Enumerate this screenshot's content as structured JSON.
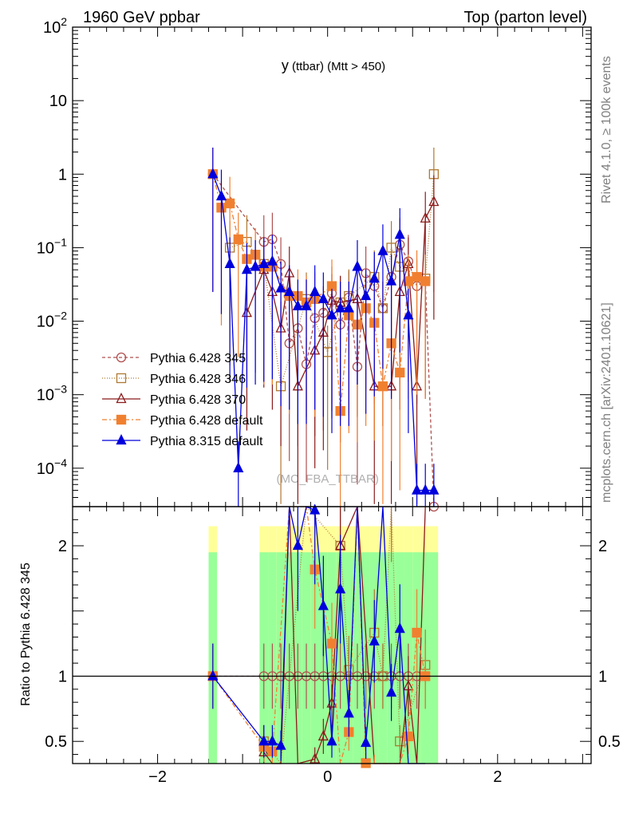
{
  "header": {
    "left": "1960 GeV ppbar",
    "right": "Top (parton level)"
  },
  "side_labels": {
    "rivet": "Rivet 4.1.0, ≥ 100k events",
    "mcplots": "mcplots.cern.ch [arXiv:2401.10621]"
  },
  "chart_data": {
    "type": "line",
    "title_main": "y",
    "title_sub": " (ttbar) (Mtt > 450)",
    "watermark": "(MC_FBA_TTBAR)",
    "xlim": [
      -3.0,
      3.1
    ],
    "ylim": [
      3e-05,
      100
    ],
    "yscale": "log",
    "x_ticks": [
      -2,
      0,
      2
    ],
    "x_tick_labels": [
      "−2",
      "0",
      "2"
    ],
    "y_ticks": [
      {
        "v": 100,
        "base": "10",
        "exp": "2"
      },
      {
        "v": 10,
        "base": "10",
        "exp": ""
      },
      {
        "v": 1,
        "base": "1",
        "exp": ""
      },
      {
        "v": 0.1,
        "base": "10",
        "exp": "−1"
      },
      {
        "v": 0.01,
        "base": "10",
        "exp": "−2"
      },
      {
        "v": 0.001,
        "base": "10",
        "exp": "−3"
      },
      {
        "v": 0.0001,
        "base": "10",
        "exp": "−4"
      }
    ],
    "legend_position": "bottom-left",
    "ratio": {
      "ylabel": "Ratio to Pythia 6.428 345",
      "ylim": [
        0.33,
        2.3
      ],
      "y_ticks": [
        0.5,
        1,
        2
      ],
      "y_tick_labels": [
        "0.5",
        "1",
        "2"
      ]
    },
    "series": [
      {
        "name": "Pythia 6.428 345",
        "color": "#b05050",
        "dash": "4,3",
        "marker": "circle-open",
        "x": [
          -1.35,
          -0.75,
          -0.65,
          -0.55,
          -0.45,
          -0.35,
          -0.25,
          -0.15,
          -0.05,
          0.05,
          0.15,
          0.25,
          0.35,
          0.45,
          0.55,
          0.65,
          0.75,
          0.85,
          0.95,
          1.05,
          1.15,
          1.25
        ],
        "y": [
          1.0,
          0.12,
          0.13,
          0.06,
          0.005,
          0.008,
          0.0026,
          0.011,
          0.013,
          0.024,
          0.009,
          0.021,
          0.0024,
          0.045,
          0.03,
          0.015,
          0.04,
          0.11,
          0.065,
          0.03,
          0.035,
          3e-05
        ]
      },
      {
        "name": "Pythia 6.428 346",
        "color": "#b07830",
        "dash": "1,2",
        "marker": "square-open",
        "x": [
          -1.15,
          -0.95,
          -0.85,
          -0.75,
          -0.55,
          -0.25,
          0.0,
          0.15,
          0.25,
          0.55,
          0.65,
          0.75,
          0.85,
          1.15,
          1.25
        ],
        "y": [
          0.1,
          0.12,
          0.08,
          0.06,
          0.0013,
          0.02,
          0.0038,
          0.018,
          0.022,
          0.04,
          0.015,
          0.1,
          0.055,
          0.038,
          1.0
        ]
      },
      {
        "name": "Pythia 6.428 370",
        "color": "#8b1a1a",
        "dash": "",
        "marker": "triangle-open",
        "x": [
          -0.95,
          -0.75,
          -0.65,
          -0.55,
          -0.45,
          -0.35,
          -0.15,
          -0.05,
          0.05,
          0.15,
          0.35,
          0.55,
          0.75,
          0.85,
          0.95,
          1.05,
          1.15,
          1.25
        ],
        "y": [
          0.013,
          0.05,
          0.025,
          0.008,
          0.045,
          0.0013,
          0.004,
          0.007,
          0.019,
          0.018,
          0.02,
          0.0013,
          0.0013,
          0.025,
          0.06,
          0.0013,
          0.25,
          0.42
        ]
      },
      {
        "name": "Pythia 6.428 default",
        "color": "#f08030",
        "dash": "6,3,2,3",
        "marker": "square-filled",
        "x": [
          -1.35,
          -1.25,
          -1.15,
          -1.05,
          -0.95,
          -0.85,
          -0.75,
          -0.65,
          -0.45,
          -0.35,
          -0.25,
          -0.15,
          0.05,
          0.15,
          0.25,
          0.35,
          0.45,
          0.55,
          0.65,
          0.75,
          0.85,
          0.95,
          1.05,
          1.15
        ],
        "y": [
          1.0,
          0.35,
          0.4,
          0.13,
          0.07,
          0.08,
          0.055,
          0.055,
          0.022,
          0.022,
          0.018,
          0.02,
          0.03,
          0.0006,
          0.012,
          0.009,
          0.015,
          0.0095,
          0.0013,
          0.005,
          0.002,
          0.035,
          0.04,
          0.035
        ]
      },
      {
        "name": "Pythia 8.315 default",
        "color": "#0000dd",
        "dash": "",
        "marker": "triangle-filled",
        "x": [
          -1.35,
          -1.25,
          -1.15,
          -1.05,
          -0.95,
          -0.85,
          -0.75,
          -0.65,
          -0.55,
          -0.45,
          -0.35,
          -0.25,
          -0.15,
          -0.05,
          0.05,
          0.15,
          0.25,
          0.35,
          0.45,
          0.55,
          0.65,
          0.75,
          0.85,
          0.95,
          1.05,
          1.15,
          1.25
        ],
        "y": [
          1.0,
          0.5,
          0.06,
          0.0001,
          0.05,
          0.055,
          0.06,
          0.065,
          0.028,
          0.025,
          0.016,
          0.016,
          0.025,
          0.02,
          0.012,
          0.015,
          0.015,
          0.055,
          0.022,
          0.038,
          0.09,
          0.035,
          0.15,
          0.012,
          5e-05,
          5e-05,
          5e-05
        ]
      }
    ]
  }
}
